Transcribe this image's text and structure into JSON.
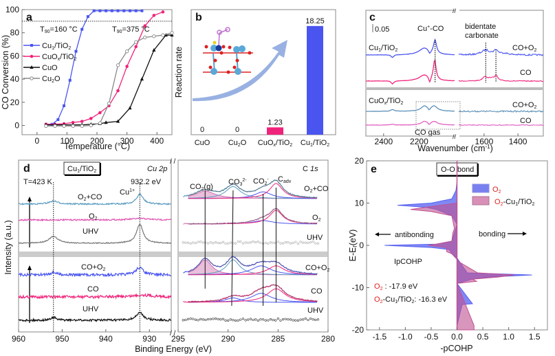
{
  "chart_data": [
    {
      "panel": "a",
      "type": "line",
      "xlabel": "Temperature (°C)",
      "ylabel": "CO Conversion (%)",
      "xlim": [
        -50,
        450
      ],
      "ylim": [
        -8,
        100
      ],
      "xticks": [
        0,
        100,
        200,
        300,
        400
      ],
      "yticks": [
        0,
        20,
        40,
        60,
        80,
        100
      ],
      "reference_line": {
        "y": 90,
        "style": "dotted"
      },
      "annotations": [
        {
          "text": "T90=160 °C",
          "sub": "90",
          "x": 60,
          "y": 84
        },
        {
          "text": "T90=375 °C",
          "sub": "90",
          "x": 300,
          "y": 84
        }
      ],
      "legend_position": "center-left",
      "series": [
        {
          "name": "Cu1/TiO2",
          "color": "#4a55f0",
          "marker": "square",
          "x": [
            30,
            50,
            70,
            90,
            110,
            130,
            150,
            170,
            190,
            210,
            230,
            250,
            270,
            290,
            310,
            330,
            350
          ],
          "y": [
            1,
            1,
            5,
            17,
            39,
            64,
            83,
            94,
            99,
            99,
            99,
            99,
            99,
            99,
            99,
            99,
            99
          ]
        },
        {
          "name": "CuOx/TiO2",
          "color": "#f0237b",
          "marker": "circle",
          "x": [
            30,
            60,
            90,
            120,
            150,
            180,
            210,
            240,
            270,
            300,
            330,
            360,
            390,
            420
          ],
          "y": [
            1,
            1,
            1.5,
            2.5,
            3.5,
            6,
            11,
            17,
            30,
            51,
            68,
            86,
            95,
            98
          ]
        },
        {
          "name": "CuO",
          "color": "#111111",
          "marker": "triangle",
          "x": [
            30,
            60,
            90,
            120,
            150,
            180,
            210,
            230,
            270,
            310,
            350,
            390,
            430,
            450
          ],
          "y": [
            0.5,
            0.5,
            0.5,
            0.5,
            0.5,
            1,
            1.5,
            2.5,
            3.5,
            15,
            40,
            65,
            78,
            78
          ]
        },
        {
          "name": "Cu2O",
          "color": "#888888",
          "marker": "open-circle",
          "x": [
            30,
            60,
            90,
            120,
            150,
            180,
            210,
            240,
            270,
            300,
            330,
            360,
            390,
            420,
            450
          ],
          "y": [
            -0.5,
            -0.5,
            -0.5,
            -0.5,
            -0.5,
            0,
            2,
            19,
            52,
            64,
            72,
            76,
            77,
            78,
            80
          ]
        }
      ]
    },
    {
      "panel": "b",
      "type": "bar",
      "ylabel": "Reaction rate",
      "categories": [
        "CuO",
        "Cu2O",
        "CuOx/TiO2",
        "Cu1/TiO2"
      ],
      "values": [
        0,
        0,
        1.23,
        18.25
      ],
      "value_labels": [
        "0",
        "0",
        "1.23",
        "18.25"
      ],
      "colors": [
        "#f0237b",
        "#f0237b",
        "#f0237b",
        "#4a55f0"
      ],
      "ylim": [
        0,
        21
      ],
      "inset": "atomic structure model with curved arrow"
    },
    {
      "panel": "c",
      "type": "line",
      "xlabel": "Wavenumber (cm-1)",
      "xticks": [
        2400,
        2200,
        1600,
        1400
      ],
      "scale_bar": "0.05",
      "annotations": [
        "Cu+-CO",
        "bidentate carbonate",
        "CO gas"
      ],
      "groups": [
        {
          "label": "Cu1/TiO2",
          "series": [
            {
              "name": "CO+O2",
              "color": "#4a55f0"
            },
            {
              "name": "CO",
              "color": "#f0237b"
            }
          ]
        },
        {
          "label": "CuOx/TiO2",
          "series": [
            {
              "name": "CO+O2",
              "color": "#5b8fb8"
            },
            {
              "name": "CO",
              "color": "#e060c0"
            }
          ]
        }
      ],
      "peaks": {
        "Cu+-CO": 2110,
        "carbonate_1": 1590,
        "carbonate_2": 1530
      }
    },
    {
      "panel": "d",
      "type": "line",
      "xlabel": "Binding Energy (eV)",
      "ylabel": "Intensity (a.u.)",
      "sample_label": "Cu1/TiO2",
      "left": {
        "region": "Cu 2p",
        "xticks": [
          960,
          950,
          940,
          930
        ],
        "xlim": [
          960,
          925
        ],
        "annotations": [
          "T=423 K",
          "932.2 eV",
          "Cu1+"
        ],
        "top_series": [
          {
            "name": "O2+CO",
            "color": "#5b9cc0"
          },
          {
            "name": "O2",
            "color": "#e050b0"
          },
          {
            "name": "UHV",
            "color": "#777777"
          }
        ],
        "bottom_series": [
          {
            "name": "CO+O2",
            "color": "#4a55f0"
          },
          {
            "name": "CO",
            "color": "#f0237b"
          },
          {
            "name": "UHV",
            "color": "#111111"
          }
        ]
      },
      "right": {
        "region": "C 1s",
        "xticks": [
          295,
          290,
          285,
          280
        ],
        "xlim": [
          295,
          280
        ],
        "peak_labels": [
          "CO2(g)",
          "CO3 2-",
          "CO2 -",
          "Cadv"
        ],
        "top_series": [
          {
            "name": "O2+CO"
          },
          {
            "name": "O2"
          },
          {
            "name": "UHV"
          }
        ],
        "bottom_series": [
          {
            "name": "CO+O2"
          },
          {
            "name": "CO"
          },
          {
            "name": "UHV"
          }
        ]
      }
    },
    {
      "panel": "e",
      "type": "area",
      "title": "O-O bond",
      "xlabel": "-pCOHP",
      "ylabel": "E-Ef(eV)",
      "xlim": [
        -1.75,
        1.75
      ],
      "ylim": [
        -20,
        20
      ],
      "xticks": [
        -1.5,
        -1.0,
        -0.5,
        0.0,
        0.5,
        1.0,
        1.5
      ],
      "yticks": [
        20,
        10,
        0,
        -10,
        -20
      ],
      "legend_position": "top-right",
      "legend": [
        "O2",
        "O2-Cu1/TiO2"
      ],
      "annotations": [
        "antibonding",
        "bonding",
        "IpCOHP",
        "O2 : -17.9 eV",
        "O2-Cu1/TiO2: -16.3 eV"
      ],
      "ipcohp": {
        "O2": -17.9,
        "O2-Cu1/TiO2": -16.3
      },
      "series": [
        {
          "name": "O2",
          "color": "#5560f0",
          "points": [
            [
              15,
              0
            ],
            [
              13,
              -0.02
            ],
            [
              12,
              -0.06
            ],
            [
              11,
              -0.1
            ],
            [
              10.5,
              -0.3
            ],
            [
              10,
              -0.5
            ],
            [
              9.5,
              -1.15
            ],
            [
              9,
              -0.6
            ],
            [
              8.5,
              -0.4
            ],
            [
              8,
              -0.3
            ],
            [
              7,
              -0.1
            ],
            [
              5,
              0
            ],
            [
              1,
              -0.1
            ],
            [
              0.3,
              -0.4
            ],
            [
              0,
              -1.4
            ],
            [
              -0.5,
              -0.5
            ],
            [
              -1,
              -0.15
            ],
            [
              -2,
              -0.1
            ],
            [
              -3,
              0
            ],
            [
              -6.5,
              0.2
            ],
            [
              -7,
              1.45
            ],
            [
              -7.5,
              0.6
            ],
            [
              -8,
              0.3
            ],
            [
              -9,
              0
            ],
            [
              -13.8,
              0.3
            ],
            [
              -14,
              0.1
            ],
            [
              -19,
              0
            ],
            [
              -20,
              0
            ]
          ]
        },
        {
          "name": "O2-Cu1/TiO2",
          "color": "#c05090",
          "points": [
            [
              10,
              0
            ],
            [
              9.5,
              -0.3
            ],
            [
              9,
              -0.6
            ],
            [
              8.5,
              -0.9
            ],
            [
              8,
              -0.5
            ],
            [
              7.5,
              -0.3
            ],
            [
              7,
              -0.1
            ],
            [
              4,
              -0.05
            ],
            [
              3,
              -0.08
            ],
            [
              1,
              -0.1
            ],
            [
              0.5,
              -0.3
            ],
            [
              0,
              -0.55
            ],
            [
              -0.5,
              -0.2
            ],
            [
              -1.5,
              -0.2
            ],
            [
              -2,
              -0.1
            ],
            [
              -4,
              0.05
            ],
            [
              -6.5,
              0.4
            ],
            [
              -7,
              1.1
            ],
            [
              -7.5,
              0.8
            ],
            [
              -8,
              0.3
            ],
            [
              -8.5,
              0.38
            ],
            [
              -9,
              0
            ],
            [
              -19,
              0.33
            ],
            [
              -20,
              0.33
            ]
          ]
        }
      ]
    }
  ],
  "panel_labels": [
    "a",
    "b",
    "c",
    "d",
    "e"
  ]
}
